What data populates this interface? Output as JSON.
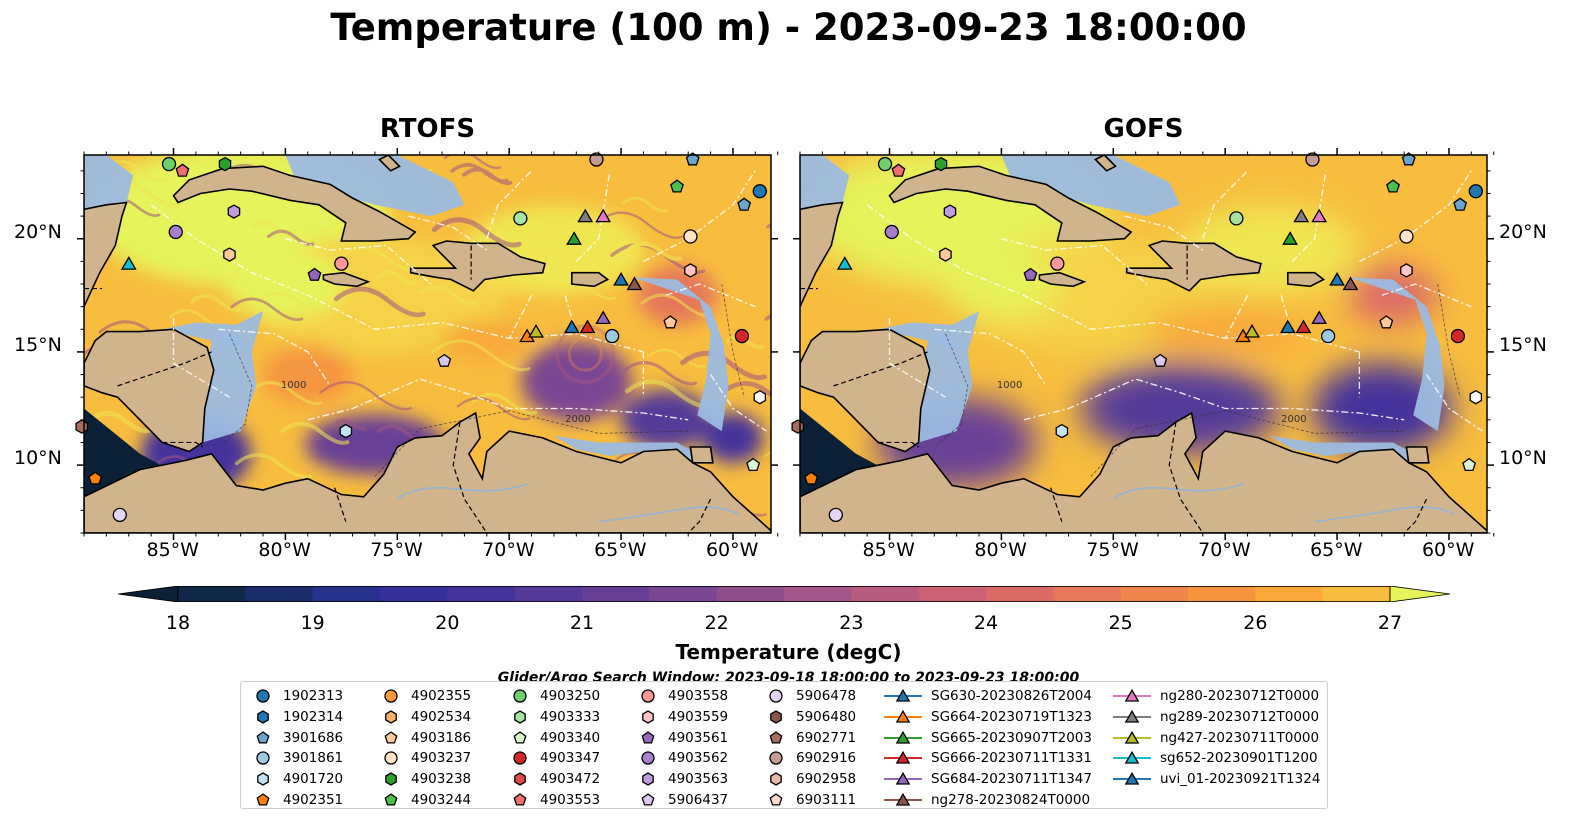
{
  "title": "Temperature (100 m) - 2023-09-23 18:00:00",
  "panels": [
    {
      "title": "RTOFS",
      "style": "eddies"
    },
    {
      "title": "GOFS",
      "style": "smooth"
    }
  ],
  "lon_labels": [
    "85°W",
    "80°W",
    "75°W",
    "70°W",
    "65°W",
    "60°W"
  ],
  "lat_labels": [
    "20°N",
    "15°N",
    "10°N"
  ],
  "contour_labels": [
    "1000",
    "2000"
  ],
  "colorbar": {
    "label": "Temperature (degC)",
    "min": 18,
    "max": 27,
    "step": 0.5,
    "tick_labels": [
      "18",
      "19",
      "20",
      "21",
      "22",
      "23",
      "24",
      "25",
      "26",
      "27"
    ],
    "colors": [
      "#0b2036",
      "#122848",
      "#1a2d6a",
      "#27308a",
      "#352f9a",
      "#45339c",
      "#553a9a",
      "#673f96",
      "#7a4692",
      "#8e4e8c",
      "#a25586",
      "#b75c7e",
      "#ca6273",
      "#da6b67",
      "#e6775a",
      "#f0854c",
      "#f5963f",
      "#f8a93a",
      "#f8bd3e",
      "#f5d246",
      "#efe651",
      "#e6f35a"
    ]
  },
  "search_window": "Glider/Argo Search Window: 2023-09-18 18:00:00 to 2023-09-23 18:00:00",
  "legend": {
    "columns": [
      [
        {
          "label": "1902313",
          "marker": "circle",
          "color": "#1f77b4"
        },
        {
          "label": "1902314",
          "marker": "hexagon",
          "color": "#1f77b4"
        },
        {
          "label": "3901686",
          "marker": "pentagon",
          "color": "#6aa5d0"
        },
        {
          "label": "3901861",
          "marker": "circle",
          "color": "#9ecae1"
        },
        {
          "label": "4901720",
          "marker": "hexagon",
          "color": "#c6e3f5"
        },
        {
          "label": "4902351",
          "marker": "pentagon",
          "color": "#ff7f0e"
        }
      ],
      [
        {
          "label": "4902355",
          "marker": "circle",
          "color": "#ff9a3c"
        },
        {
          "label": "4902534",
          "marker": "hexagon",
          "color": "#ffb26b"
        },
        {
          "label": "4903186",
          "marker": "pentagon",
          "color": "#ffc99a"
        },
        {
          "label": "4903237",
          "marker": "circle",
          "color": "#ffe3c7"
        },
        {
          "label": "4903238",
          "marker": "hexagon",
          "color": "#2ca02c"
        },
        {
          "label": "4903244",
          "marker": "pentagon",
          "color": "#4cbf4c"
        }
      ],
      [
        {
          "label": "4903250",
          "marker": "circle",
          "color": "#6fcf6f"
        },
        {
          "label": "4903333",
          "marker": "hexagon",
          "color": "#a6e3a0"
        },
        {
          "label": "4903340",
          "marker": "pentagon",
          "color": "#d8f5cf"
        },
        {
          "label": "4903347",
          "marker": "circle",
          "color": "#d62728"
        },
        {
          "label": "4903472",
          "marker": "hexagon",
          "color": "#e34a4a"
        },
        {
          "label": "4903553",
          "marker": "pentagon",
          "color": "#f07070"
        }
      ],
      [
        {
          "label": "4903558",
          "marker": "circle",
          "color": "#ff9896"
        },
        {
          "label": "4903559",
          "marker": "hexagon",
          "color": "#ffc4c4"
        },
        {
          "label": "4903561",
          "marker": "pentagon",
          "color": "#9467bd"
        },
        {
          "label": "4903562",
          "marker": "circle",
          "color": "#a77fcc"
        },
        {
          "label": "4903563",
          "marker": "hexagon",
          "color": "#bd9ddb"
        },
        {
          "label": "5906437",
          "marker": "pentagon",
          "color": "#dac7ee"
        }
      ],
      [
        {
          "label": "5906478",
          "marker": "circle",
          "color": "#e5d5f5"
        },
        {
          "label": "5906480",
          "marker": "hexagon",
          "color": "#8c564b"
        },
        {
          "label": "6902771",
          "marker": "pentagon",
          "color": "#a86d60"
        },
        {
          "label": "6902916",
          "marker": "circle",
          "color": "#c49c94"
        },
        {
          "label": "6902958",
          "marker": "hexagon",
          "color": "#e8b7a8"
        },
        {
          "label": "6903111",
          "marker": "pentagon",
          "color": "#fbd8cc"
        }
      ],
      [
        {
          "label": "SG630-20230826T2004",
          "marker": "triangle",
          "color": "#1f77b4"
        },
        {
          "label": "SG664-20230719T1323",
          "marker": "triangle",
          "color": "#ff7f0e"
        },
        {
          "label": "SG665-20230907T2003",
          "marker": "triangle",
          "color": "#2ca02c"
        },
        {
          "label": "SG666-20230711T1331",
          "marker": "triangle",
          "color": "#d62728"
        },
        {
          "label": "SG684-20230711T1347",
          "marker": "triangle",
          "color": "#9467bd"
        },
        {
          "label": "ng278-20230824T0000",
          "marker": "triangle",
          "color": "#8c564b"
        }
      ],
      [
        {
          "label": "ng280-20230712T0000",
          "marker": "triangle",
          "color": "#e377c2"
        },
        {
          "label": "ng289-20230712T0000",
          "marker": "triangle",
          "color": "#7f7f7f"
        },
        {
          "label": "ng427-20230711T0000",
          "marker": "triangle",
          "color": "#bcbd22"
        },
        {
          "label": "sg652-20230901T1200",
          "marker": "triangle",
          "color": "#17becf"
        },
        {
          "label": "uvi_01-20230921T1324",
          "marker": "triangle",
          "color": "#1f77b4"
        }
      ]
    ]
  },
  "map_markers": [
    {
      "lon": -85.2,
      "lat": 23.3,
      "marker": "circle",
      "color": "#6fcf6f"
    },
    {
      "lon": -84.6,
      "lat": 23.0,
      "marker": "pentagon",
      "color": "#f07070"
    },
    {
      "lon": -82.7,
      "lat": 23.3,
      "marker": "hexagon",
      "color": "#2ca02c"
    },
    {
      "lon": -66.1,
      "lat": 23.5,
      "marker": "circle",
      "color": "#c49c94"
    },
    {
      "lon": -61.8,
      "lat": 23.5,
      "marker": "pentagon",
      "color": "#6aa5d0"
    },
    {
      "lon": -62.5,
      "lat": 22.3,
      "marker": "pentagon",
      "color": "#4cbf4c"
    },
    {
      "lon": -58.8,
      "lat": 22.1,
      "marker": "circle",
      "color": "#1f77b4"
    },
    {
      "lon": -59.5,
      "lat": 21.5,
      "marker": "pentagon",
      "color": "#6aa5d0"
    },
    {
      "lon": -82.3,
      "lat": 21.2,
      "marker": "hexagon",
      "color": "#bd9ddb"
    },
    {
      "lon": -69.5,
      "lat": 20.9,
      "marker": "circle",
      "color": "#a6e3a0"
    },
    {
      "lon": -84.9,
      "lat": 20.3,
      "marker": "circle",
      "color": "#a77fcc"
    },
    {
      "lon": -61.9,
      "lat": 20.1,
      "marker": "circle",
      "color": "#ffe3c7"
    },
    {
      "lon": -82.5,
      "lat": 19.3,
      "marker": "hexagon",
      "color": "#ffc99a"
    },
    {
      "lon": -77.5,
      "lat": 18.9,
      "marker": "circle",
      "color": "#ff9896"
    },
    {
      "lon": -61.9,
      "lat": 18.6,
      "marker": "hexagon",
      "color": "#ffc4c4"
    },
    {
      "lon": -78.7,
      "lat": 18.4,
      "marker": "pentagon",
      "color": "#9467bd"
    },
    {
      "lon": -62.8,
      "lat": 16.3,
      "marker": "pentagon",
      "color": "#ffc99a"
    },
    {
      "lon": -65.4,
      "lat": 15.7,
      "marker": "circle",
      "color": "#9ecae1"
    },
    {
      "lon": -59.6,
      "lat": 15.7,
      "marker": "circle",
      "color": "#d62728"
    },
    {
      "lon": -72.9,
      "lat": 14.6,
      "marker": "pentagon",
      "color": "#dac7ee"
    },
    {
      "lon": -58.8,
      "lat": 13.0,
      "marker": "hexagon",
      "color": "#ffffff"
    },
    {
      "lon": -77.3,
      "lat": 11.5,
      "marker": "hexagon",
      "color": "#c6e3f5"
    },
    {
      "lon": -89.1,
      "lat": 11.7,
      "marker": "hexagon",
      "color": "#a86d60"
    },
    {
      "lon": -59.1,
      "lat": 10.0,
      "marker": "pentagon",
      "color": "#d8f5cf"
    },
    {
      "lon": -88.5,
      "lat": 9.4,
      "marker": "pentagon",
      "color": "#ff7f0e"
    },
    {
      "lon": -87.4,
      "lat": 7.8,
      "marker": "circle",
      "color": "#e5d5f5"
    },
    {
      "lon": -87.0,
      "lat": 18.9,
      "marker": "triangle",
      "color": "#17becf"
    },
    {
      "lon": -66.6,
      "lat": 21.0,
      "marker": "triangle",
      "color": "#7f7f7f"
    },
    {
      "lon": -65.8,
      "lat": 21.0,
      "marker": "triangle",
      "color": "#e377c2"
    },
    {
      "lon": -67.1,
      "lat": 20.0,
      "marker": "triangle",
      "color": "#2ca02c"
    },
    {
      "lon": -65.0,
      "lat": 18.2,
      "marker": "triangle",
      "color": "#1f77b4"
    },
    {
      "lon": -64.4,
      "lat": 18.0,
      "marker": "triangle",
      "color": "#8c564b"
    },
    {
      "lon": -69.2,
      "lat": 15.7,
      "marker": "triangle",
      "color": "#ff7f0e"
    },
    {
      "lon": -68.8,
      "lat": 15.9,
      "marker": "triangle",
      "color": "#bcbd22"
    },
    {
      "lon": -67.2,
      "lat": 16.1,
      "marker": "triangle",
      "color": "#1f77b4"
    },
    {
      "lon": -66.5,
      "lat": 16.1,
      "marker": "triangle",
      "color": "#d62728"
    },
    {
      "lon": -65.8,
      "lat": 16.5,
      "marker": "triangle",
      "color": "#9467bd"
    }
  ],
  "map_extent": {
    "lon": [
      -89,
      -58.3
    ],
    "lat": [
      7,
      23.7
    ]
  }
}
